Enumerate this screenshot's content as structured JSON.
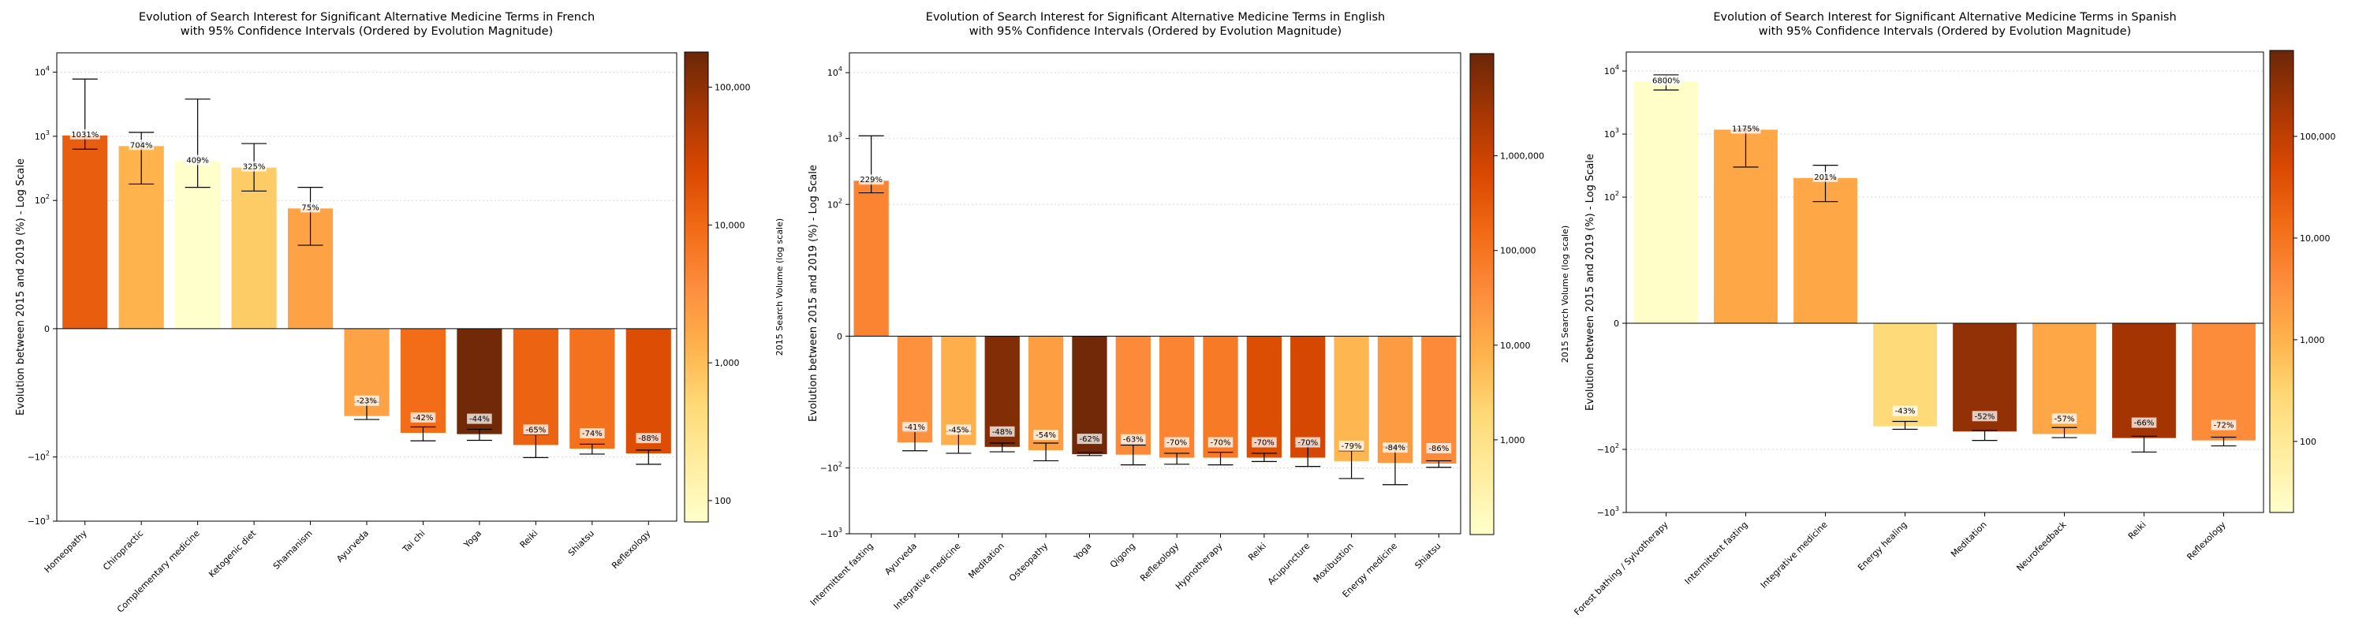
{
  "figure": {
    "colorbar_label": "2015 Search Volume (log scale)",
    "colormap": [
      "#ffffcc",
      "#ffeda0",
      "#fed976",
      "#feb24c",
      "#fd8d3c",
      "#f26b16",
      "#d94801",
      "#a63603",
      "#6b2708"
    ]
  },
  "chart_data": [
    {
      "type": "bar",
      "title_line1": "Evolution of Search Interest for Significant Alternative Medicine Terms in French",
      "title_line2": "with 95% Confidence Intervals (Ordered by Evolution Magnitude)",
      "ylabel": "Evolution between 2015 and 2019 (%) - Log Scale",
      "yscale": "symlog",
      "ylim": [
        -1000,
        20000
      ],
      "ytick_labels": [
        {
          "value": 10000,
          "base": "10",
          "exp": "4"
        },
        {
          "value": 1000,
          "base": "10",
          "exp": "3"
        },
        {
          "value": 100,
          "base": "10",
          "exp": "2"
        },
        {
          "value": 0,
          "base": "0",
          "exp": ""
        },
        {
          "value": -100,
          "base": "−10",
          "exp": "2"
        },
        {
          "value": -1000,
          "base": "−10",
          "exp": "3"
        }
      ],
      "categories": [
        "Homeopathy",
        "Chiropractic",
        "Complementary medicine",
        "Ketogenic diet",
        "Shamanism",
        "Ayurveda",
        "Tai chi",
        "Yoga",
        "Reiki",
        "Shiatsu",
        "Reflexology"
      ],
      "values": [
        1031,
        704,
        409,
        325,
        75,
        -23,
        -42,
        -44,
        -65,
        -74,
        -88
      ],
      "value_labels": [
        "1031%",
        "704%",
        "409%",
        "325%",
        "75%",
        "-23%",
        "-42%",
        "-44%",
        "-65%",
        "-74%",
        "-88%"
      ],
      "ci_low": [
        630,
        180,
        160,
        140,
        20,
        -26,
        -56,
        -55,
        -102,
        -90,
        -130
      ],
      "ci_high": [
        7800,
        1150,
        3800,
        770,
        160,
        -14,
        -34,
        -37,
        -45,
        -63,
        -78
      ],
      "volume_2015": [
        14000,
        1300,
        70,
        700,
        2000,
        2000,
        9000,
        160000,
        12000,
        8000,
        22000
      ],
      "colorbar": {
        "min": 70,
        "max": 180000,
        "ticks": [
          {
            "value": 100,
            "label": "100"
          },
          {
            "value": 1000,
            "label": "1,000"
          },
          {
            "value": 10000,
            "label": "10,000"
          },
          {
            "value": 100000,
            "label": "100,000"
          }
        ]
      }
    },
    {
      "type": "bar",
      "title_line1": "Evolution of Search Interest for Significant Alternative Medicine Terms in English",
      "title_line2": "with 95% Confidence Intervals (Ordered by Evolution Magnitude)",
      "ylabel": "Evolution between 2015 and 2019 (%) - Log Scale",
      "yscale": "symlog",
      "ylim": [
        -1000,
        20000
      ],
      "ytick_labels": [
        {
          "value": 10000,
          "base": "10",
          "exp": "4"
        },
        {
          "value": 1000,
          "base": "10",
          "exp": "3"
        },
        {
          "value": 100,
          "base": "10",
          "exp": "2"
        },
        {
          "value": 0,
          "base": "0",
          "exp": ""
        },
        {
          "value": -100,
          "base": "−10",
          "exp": "2"
        },
        {
          "value": -1000,
          "base": "−10",
          "exp": "3"
        }
      ],
      "categories": [
        "Intermittent fasting",
        "Ayurveda",
        "Integrative medicine",
        "Meditation",
        "Osteopathy",
        "Yoga",
        "Qigong",
        "Reflexology",
        "Hypnotherapy",
        "Reiki",
        "Acupuncture",
        "Moxibustion",
        "Energy medicine",
        "Shiatsu"
      ],
      "values": [
        229,
        -41,
        -45,
        -48,
        -54,
        -62,
        -63,
        -70,
        -70,
        -70,
        -70,
        -79,
        -84,
        -86
      ],
      "value_labels": [
        "229%",
        "-41%",
        "-45%",
        "-48%",
        "-54%",
        "-62%",
        "-63%",
        "-70%",
        "-70%",
        "-70%",
        "-70%",
        "-79%",
        "-84%",
        "-86%"
      ],
      "ci_low": [
        150,
        -55,
        -60,
        -57,
        -78,
        -65,
        -90,
        -88,
        -90,
        -80,
        -95,
        -145,
        -180,
        -98
      ],
      "ci_high": [
        1100,
        -28,
        -28,
        -42,
        -42,
        -58,
        -45,
        -60,
        -58,
        -60,
        -45,
        -55,
        -48,
        -78
      ],
      "volume_2015": [
        50000,
        30000,
        9000,
        7000000,
        18000,
        10000000,
        40000,
        50000,
        80000,
        500000,
        700000,
        7000,
        20000,
        40000
      ],
      "colorbar": {
        "min": 100,
        "max": 12000000,
        "ticks": [
          {
            "value": 1000,
            "label": "1,000"
          },
          {
            "value": 10000,
            "label": "10,000"
          },
          {
            "value": 100000,
            "label": "100,000"
          },
          {
            "value": 1000000,
            "label": "1,000,000"
          }
        ]
      }
    },
    {
      "type": "bar",
      "title_line1": "Evolution of Search Interest for Significant Alternative Medicine Terms in Spanish",
      "title_line2": "with 95% Confidence Intervals (Ordered by Evolution Magnitude)",
      "ylabel": "Evolution between 2015 and 2019 (%) - Log Scale",
      "yscale": "symlog",
      "ylim": [
        -1000,
        20000
      ],
      "ytick_labels": [
        {
          "value": 10000,
          "base": "10",
          "exp": "4"
        },
        {
          "value": 1000,
          "base": "10",
          "exp": "3"
        },
        {
          "value": 100,
          "base": "10",
          "exp": "2"
        },
        {
          "value": 0,
          "base": "0",
          "exp": ""
        },
        {
          "value": -100,
          "base": "−10",
          "exp": "2"
        },
        {
          "value": -1000,
          "base": "−10",
          "exp": "3"
        }
      ],
      "categories": [
        "Forest bathing / Sylvotherapy",
        "Intermittent fasting",
        "Integrative medicine",
        "Energy healing",
        "Meditation",
        "Neurofeedback",
        "Reiki",
        "Reflexology"
      ],
      "values": [
        6800,
        1175,
        201,
        -43,
        -52,
        -57,
        -66,
        -72
      ],
      "value_labels": [
        "6800%",
        "1175%",
        "201%",
        "-43%",
        "-52%",
        "-57%",
        "-66%",
        "-72%"
      ],
      "ci_low": [
        5000,
        300,
        85,
        -48,
        -72,
        -65,
        -110,
        -88
      ],
      "ci_high": [
        8700,
        1200,
        320,
        -36,
        -50,
        -45,
        -62,
        -64
      ],
      "volume_2015": [
        22,
        1500,
        1500,
        250,
        300000,
        1500,
        200000,
        4000
      ],
      "colorbar": {
        "min": 20,
        "max": 700000,
        "ticks": [
          {
            "value": 100,
            "label": "100"
          },
          {
            "value": 1000,
            "label": "1,000"
          },
          {
            "value": 10000,
            "label": "10,000"
          },
          {
            "value": 100000,
            "label": "100,000"
          }
        ]
      }
    }
  ]
}
